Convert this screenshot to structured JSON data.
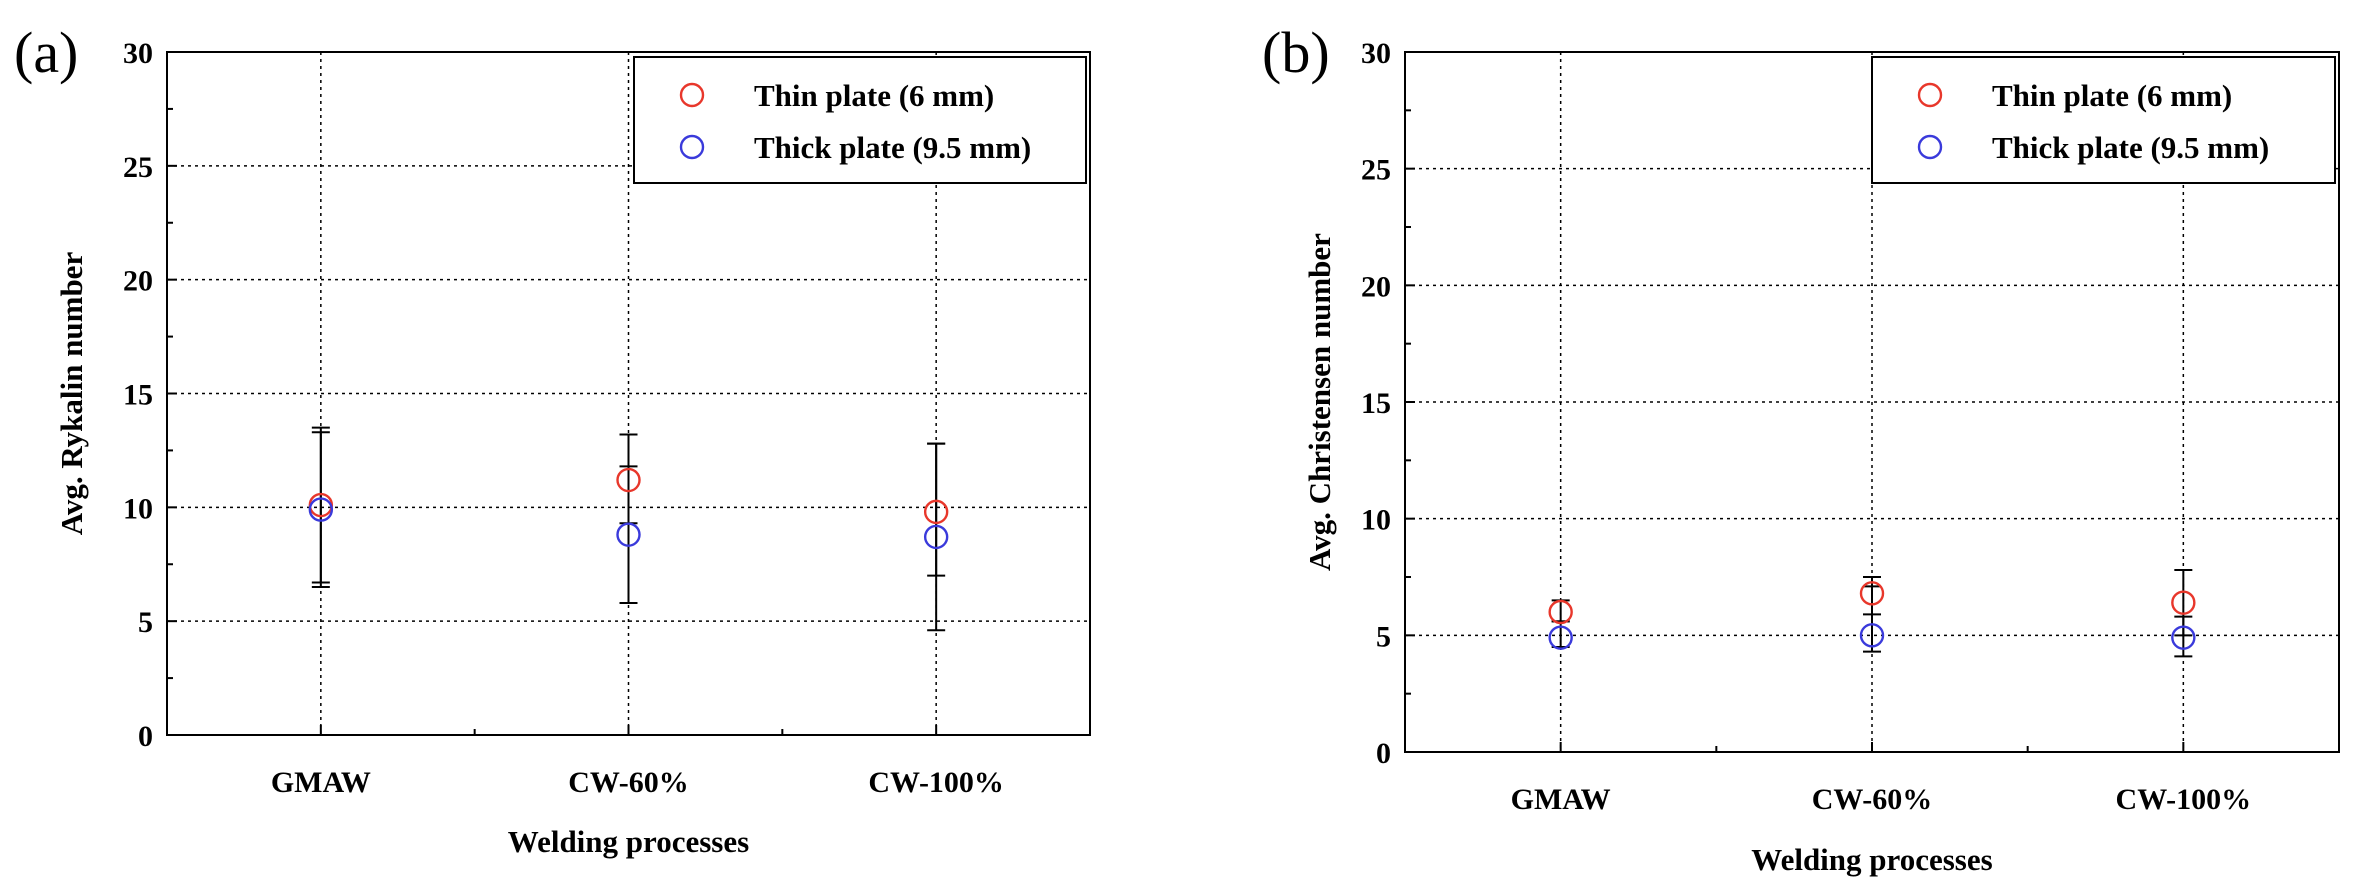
{
  "chart_data": [
    {
      "panel_label": "(a)",
      "type": "scatter",
      "categories": [
        "GMAW",
        "CW-60%",
        "CW-100%"
      ],
      "series": [
        {
          "name": "Thin plate (6 mm)",
          "color": "#e8372b",
          "values": [
            10.1,
            11.2,
            9.8
          ],
          "err_low": [
            6.7,
            9.3,
            7.0
          ],
          "err_high": [
            13.5,
            13.2,
            12.8
          ]
        },
        {
          "name": "Thick plate (9.5 mm)",
          "color": "#3a3adb",
          "values": [
            9.9,
            8.8,
            8.7
          ],
          "err_low": [
            6.5,
            5.8,
            4.6
          ],
          "err_high": [
            13.3,
            11.8,
            12.8
          ]
        }
      ],
      "xlabel": "Welding processes",
      "ylabel": "Avg. Rykalin number",
      "ylim": [
        0,
        30
      ],
      "yticks": [
        0,
        5,
        10,
        15,
        20,
        25,
        30
      ],
      "legend_position": "top-right",
      "grid": true
    },
    {
      "panel_label": "(b)",
      "type": "scatter",
      "categories": [
        "GMAW",
        "CW-60%",
        "CW-100%"
      ],
      "series": [
        {
          "name": "Thin plate (6 mm)",
          "color": "#e8372b",
          "values": [
            6.0,
            6.8,
            6.4
          ],
          "err_low": [
            5.6,
            5.9,
            5.0
          ],
          "err_high": [
            6.5,
            7.5,
            7.8
          ]
        },
        {
          "name": "Thick plate (9.5 mm)",
          "color": "#3a3adb",
          "values": [
            4.9,
            5.0,
            4.9
          ],
          "err_low": [
            4.5,
            4.3,
            4.1
          ],
          "err_high": [
            5.6,
            7.1,
            5.8
          ]
        }
      ],
      "xlabel": "Welding processes",
      "ylabel": "Avg. Christensen number",
      "ylim": [
        0,
        30
      ],
      "yticks": [
        0,
        5,
        10,
        15,
        20,
        25,
        30
      ],
      "legend_position": "top-right",
      "grid": true
    }
  ]
}
